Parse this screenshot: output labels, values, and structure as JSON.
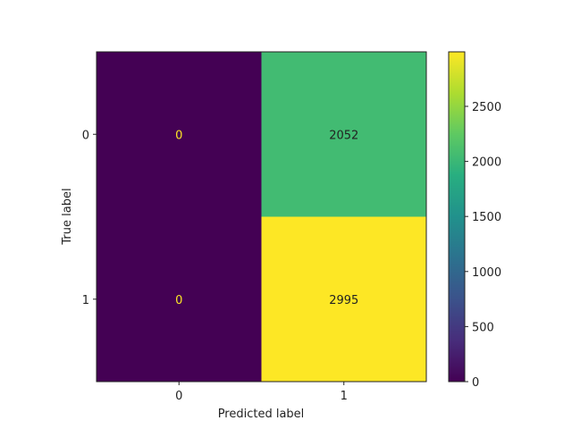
{
  "chart_data": {
    "type": "heatmap",
    "title": "",
    "xlabel": "Predicted label",
    "ylabel": "True label",
    "x_ticks": [
      "0",
      "1"
    ],
    "y_ticks": [
      "0",
      "1"
    ],
    "matrix": [
      [
        0,
        2052
      ],
      [
        0,
        2995
      ]
    ],
    "colormap": "viridis",
    "colorbar": {
      "range": [
        0,
        2995
      ],
      "ticks": [
        0,
        500,
        1000,
        1500,
        2000,
        2500
      ]
    },
    "colors": {
      "low_text": "#fde725",
      "high_text": "#222222"
    }
  }
}
